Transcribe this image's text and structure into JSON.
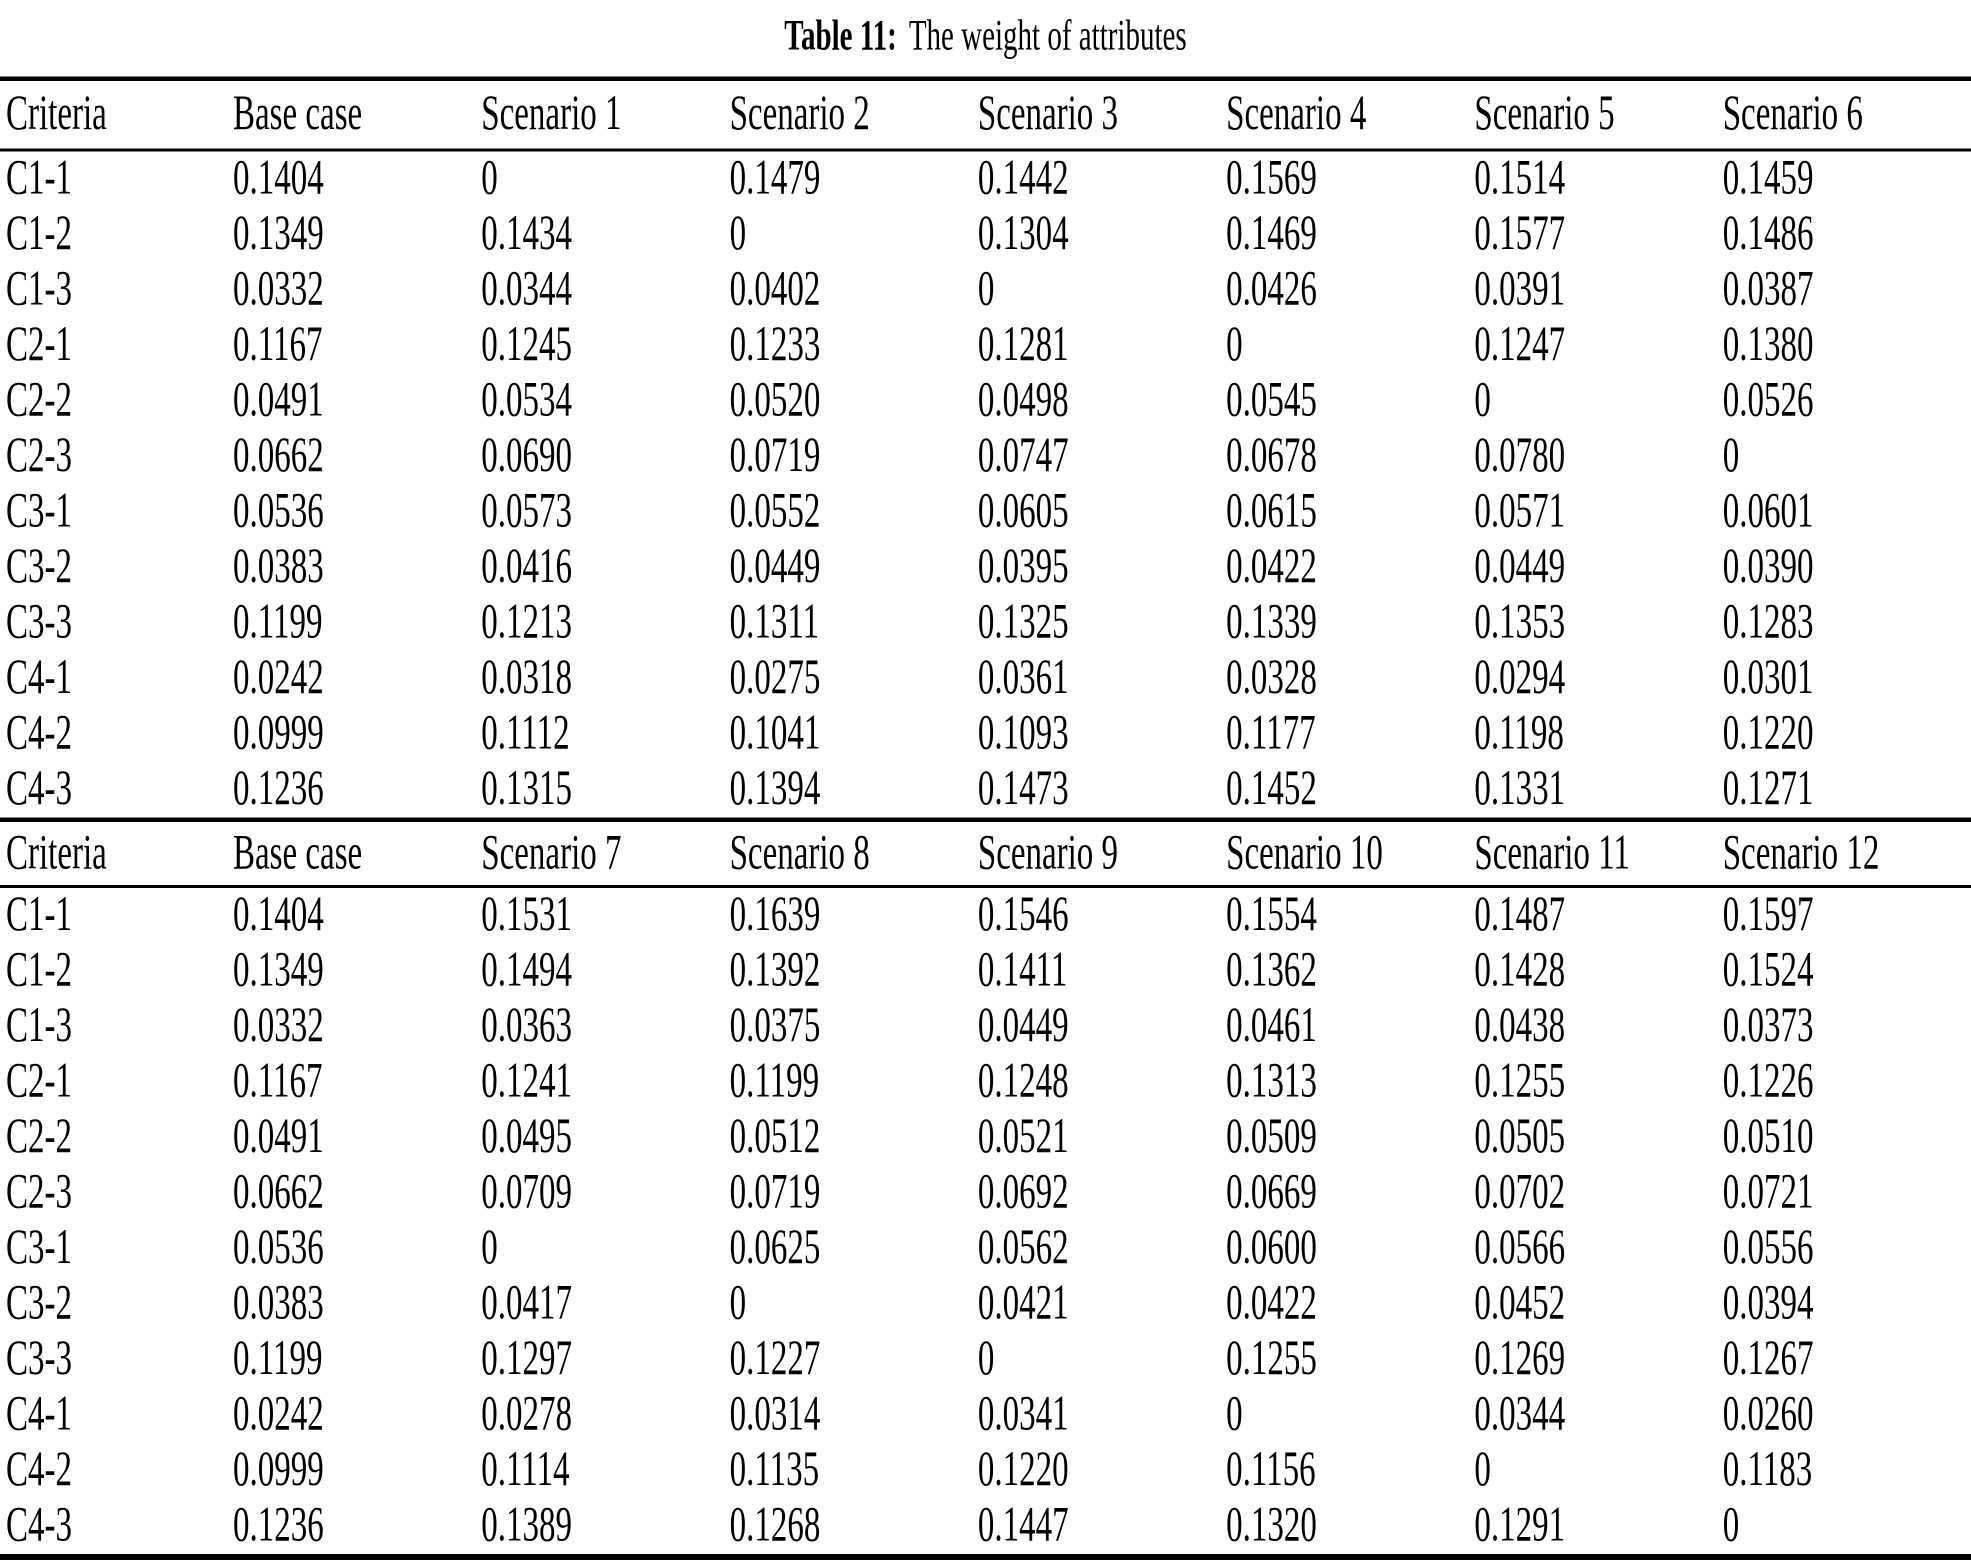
{
  "title": {
    "label": "Table 11:",
    "caption": "The weight of attributes"
  },
  "table": {
    "sections": [
      {
        "columns": [
          "Criteria",
          "Base case",
          "Scenario 1",
          "Scenario 2",
          "Scenario 3",
          "Scenario 4",
          "Scenario 5",
          "Scenario 6"
        ],
        "rows": [
          {
            "criteria": "C1-1",
            "values": [
              "0.1404",
              "0",
              "0.1479",
              "0.1442",
              "0.1569",
              "0.1514",
              "0.1459"
            ]
          },
          {
            "criteria": "C1-2",
            "values": [
              "0.1349",
              "0.1434",
              "0",
              "0.1304",
              "0.1469",
              "0.1577",
              "0.1486"
            ]
          },
          {
            "criteria": "C1-3",
            "values": [
              "0.0332",
              "0.0344",
              "0.0402",
              "0",
              "0.0426",
              "0.0391",
              "0.0387"
            ]
          },
          {
            "criteria": "C2-1",
            "values": [
              "0.1167",
              "0.1245",
              "0.1233",
              "0.1281",
              "0",
              "0.1247",
              "0.1380"
            ]
          },
          {
            "criteria": "C2-2",
            "values": [
              "0.0491",
              "0.0534",
              "0.0520",
              "0.0498",
              "0.0545",
              "0",
              "0.0526"
            ]
          },
          {
            "criteria": "C2-3",
            "values": [
              "0.0662",
              "0.0690",
              "0.0719",
              "0.0747",
              "0.0678",
              "0.0780",
              "0"
            ]
          },
          {
            "criteria": "C3-1",
            "values": [
              "0.0536",
              "0.0573",
              "0.0552",
              "0.0605",
              "0.0615",
              "0.0571",
              "0.0601"
            ]
          },
          {
            "criteria": "C3-2",
            "values": [
              "0.0383",
              "0.0416",
              "0.0449",
              "0.0395",
              "0.0422",
              "0.0449",
              "0.0390"
            ]
          },
          {
            "criteria": "C3-3",
            "values": [
              "0.1199",
              "0.1213",
              "0.1311",
              "0.1325",
              "0.1339",
              "0.1353",
              "0.1283"
            ]
          },
          {
            "criteria": "C4-1",
            "values": [
              "0.0242",
              "0.0318",
              "0.0275",
              "0.0361",
              "0.0328",
              "0.0294",
              "0.0301"
            ]
          },
          {
            "criteria": "C4-2",
            "values": [
              "0.0999",
              "0.1112",
              "0.1041",
              "0.1093",
              "0.1177",
              "0.1198",
              "0.1220"
            ]
          },
          {
            "criteria": "C4-3",
            "values": [
              "0.1236",
              "0.1315",
              "0.1394",
              "0.1473",
              "0.1452",
              "0.1331",
              "0.1271"
            ]
          }
        ]
      },
      {
        "columns": [
          "Criteria",
          "Base case",
          "Scenario 7",
          "Scenario 8",
          "Scenario 9",
          "Scenario 10",
          "Scenario 11",
          "Scenario 12"
        ],
        "rows": [
          {
            "criteria": "C1-1",
            "values": [
              "0.1404",
              "0.1531",
              "0.1639",
              "0.1546",
              "0.1554",
              "0.1487",
              "0.1597"
            ]
          },
          {
            "criteria": "C1-2",
            "values": [
              "0.1349",
              "0.1494",
              "0.1392",
              "0.1411",
              "0.1362",
              "0.1428",
              "0.1524"
            ]
          },
          {
            "criteria": "C1-3",
            "values": [
              "0.0332",
              "0.0363",
              "0.0375",
              "0.0449",
              "0.0461",
              "0.0438",
              "0.0373"
            ]
          },
          {
            "criteria": "C2-1",
            "values": [
              "0.1167",
              "0.1241",
              "0.1199",
              "0.1248",
              "0.1313",
              "0.1255",
              "0.1226"
            ]
          },
          {
            "criteria": "C2-2",
            "values": [
              "0.0491",
              "0.0495",
              "0.0512",
              "0.0521",
              "0.0509",
              "0.0505",
              "0.0510"
            ]
          },
          {
            "criteria": "C2-3",
            "values": [
              "0.0662",
              "0.0709",
              "0.0719",
              "0.0692",
              "0.0669",
              "0.0702",
              "0.0721"
            ]
          },
          {
            "criteria": "C3-1",
            "values": [
              "0.0536",
              "0",
              "0.0625",
              "0.0562",
              "0.0600",
              "0.0566",
              "0.0556"
            ]
          },
          {
            "criteria": "C3-2",
            "values": [
              "0.0383",
              "0.0417",
              "0",
              "0.0421",
              "0.0422",
              "0.0452",
              "0.0394"
            ]
          },
          {
            "criteria": "C3-3",
            "values": [
              "0.1199",
              "0.1297",
              "0.1227",
              "0",
              "0.1255",
              "0.1269",
              "0.1267"
            ]
          },
          {
            "criteria": "C4-1",
            "values": [
              "0.0242",
              "0.0278",
              "0.0314",
              "0.0341",
              "0",
              "0.0344",
              "0.0260"
            ]
          },
          {
            "criteria": "C4-2",
            "values": [
              "0.0999",
              "0.1114",
              "0.1135",
              "0.1220",
              "0.1156",
              "0",
              "0.1183"
            ]
          },
          {
            "criteria": "C4-3",
            "values": [
              "0.1236",
              "0.1389",
              "0.1268",
              "0.1447",
              "0.1320",
              "0.1291",
              "0"
            ]
          }
        ]
      }
    ]
  }
}
